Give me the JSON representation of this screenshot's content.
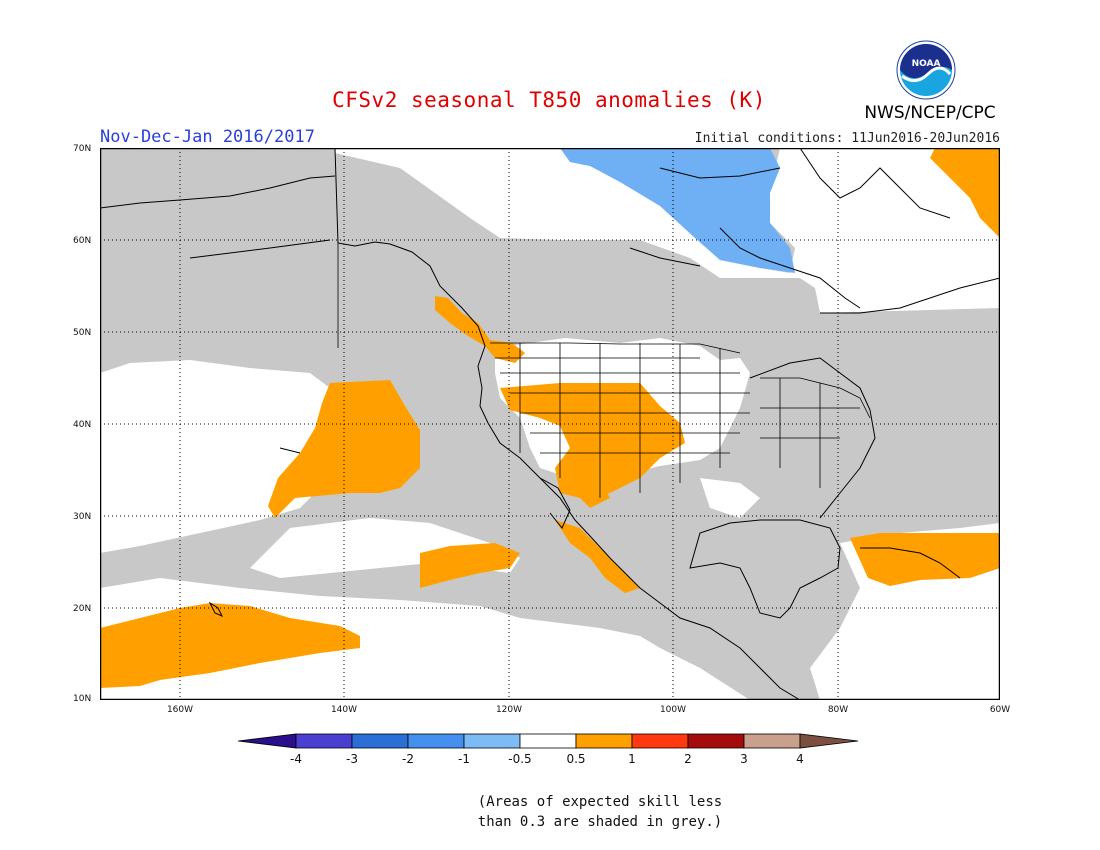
{
  "header": {
    "title": "CFSv2 seasonal T850 anomalies (K)",
    "subtitle": "Nov-Dec-Jan 2016/2017",
    "initial_conditions": "Initial conditions: 11Jun2016-20Jun2016",
    "agency": "NWS/NCEP/CPC",
    "logo_text": "NOAA"
  },
  "map": {
    "region": "North America / North Pacific",
    "lat_labels": [
      "70N",
      "60N",
      "50N",
      "40N",
      "30N",
      "20N",
      "10N"
    ],
    "lon_labels": [
      "160W",
      "140W",
      "120W",
      "100W",
      "80W",
      "60W"
    ],
    "colors": {
      "skill_grey": "#c8c8c8",
      "warm_0_5_1": "#ffa000",
      "cool_minus1_minus0_5": "#6fb0f5",
      "coastline": "#000000"
    }
  },
  "colorbar": {
    "ticks": [
      "-4",
      "-3",
      "-2",
      "-1",
      "-0.5",
      "0.5",
      "1",
      "2",
      "3",
      "4"
    ],
    "colors": [
      "#2a0f8c",
      "#4a3fd0",
      "#2b6fd6",
      "#4590ee",
      "#7dbbf5",
      "#ffffff",
      "#ffa000",
      "#ff3a10",
      "#a50d0d",
      "#c9a08c",
      "#7b5040"
    ]
  },
  "note": {
    "line1": "(Areas of expected skill less",
    "line2": "than 0.3 are shaded in grey.)"
  }
}
